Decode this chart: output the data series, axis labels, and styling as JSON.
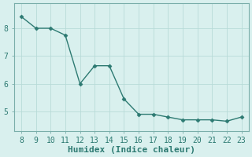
{
  "x": [
    8,
    9,
    10,
    11,
    12,
    13,
    14,
    15,
    16,
    17,
    18,
    19,
    20,
    21,
    22,
    23
  ],
  "y": [
    8.42,
    8.0,
    8.0,
    7.75,
    6.0,
    6.65,
    6.65,
    5.45,
    4.9,
    4.9,
    4.8,
    4.7,
    4.7,
    4.7,
    4.65,
    4.8
  ],
  "line_color": "#2d7a72",
  "bg_color": "#d9f0ee",
  "grid_color": "#b8dbd8",
  "xlabel": "Humidex (Indice chaleur)",
  "xlim": [
    7.5,
    23.5
  ],
  "ylim": [
    4.3,
    8.9
  ],
  "yticks": [
    5,
    6,
    7,
    8
  ],
  "xticks": [
    8,
    9,
    10,
    11,
    12,
    13,
    14,
    15,
    16,
    17,
    18,
    19,
    20,
    21,
    22,
    23
  ],
  "marker": "D",
  "markersize": 2.5,
  "linewidth": 1.0,
  "xlabel_fontsize": 8,
  "tick_fontsize": 7,
  "spine_color": "#7aaeaa"
}
